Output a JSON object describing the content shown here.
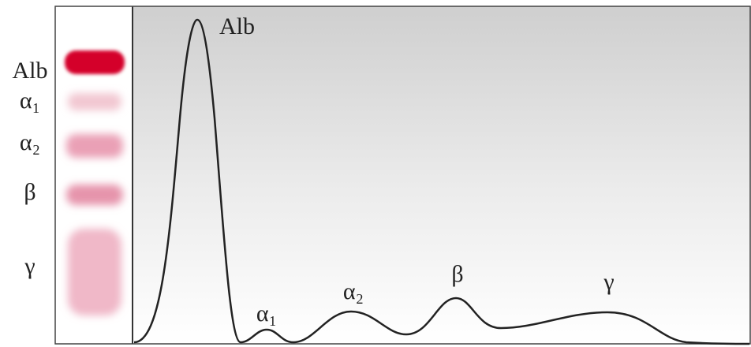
{
  "gel_labels": [
    "Alb",
    "α₁",
    "α₂",
    "β",
    "γ"
  ],
  "peak_labels": [
    "Alb",
    "α₁",
    "α₂",
    "β",
    "γ"
  ]
}
